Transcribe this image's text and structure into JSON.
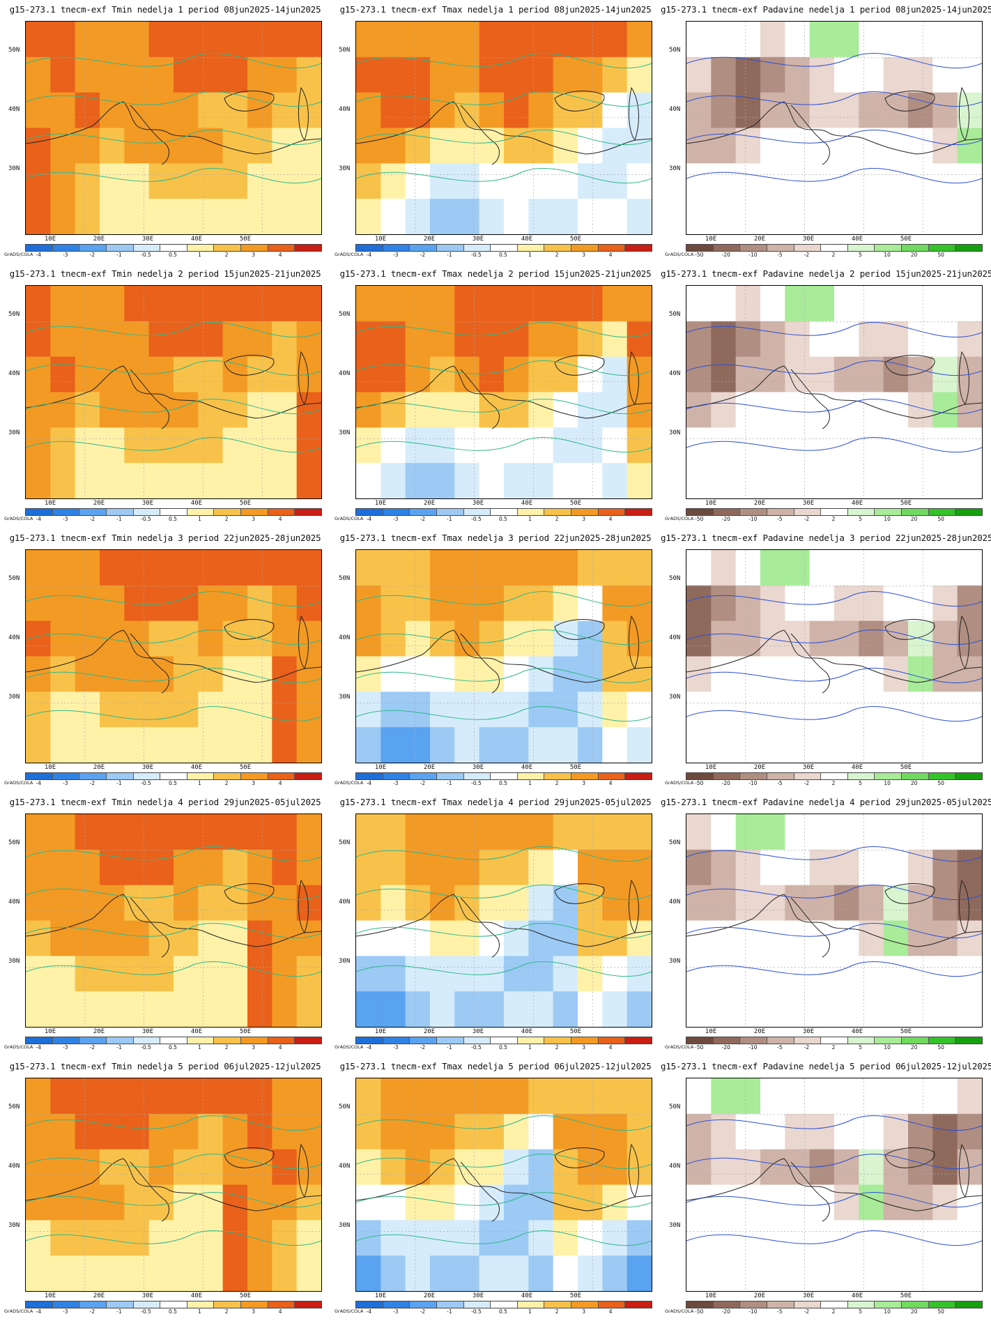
{
  "panels": [
    [
      "g15-273.1 tnecm-exf Tmin nedelja 1 period 08jun2025-14jun2025",
      "g15-273.1 tnecm-exf Tmax nedelja 1 period 08jun2025-14jun2025",
      "g15-273.1 tnecm-exf Padavine nedelja 1 period 08jun2025-14jun2025"
    ],
    [
      "g15-273.1 tnecm-exf Tmin nedelja 2 period 15jun2025-21jun2025",
      "g15-273.1 tnecm-exf Tmax nedelja 2 period 15jun2025-21jun2025",
      "g15-273.1 tnecm-exf Padavine nedelja 2 period 15jun2025-21jun2025"
    ],
    [
      "g15-273.1 tnecm-exf Tmin nedelja 3 period 22jun2025-28jun2025",
      "g15-273.1 tnecm-exf Tmax nedelja 3 period 22jun2025-28jun2025",
      "g15-273.1 tnecm-exf Padavine nedelja 3 period 22jun2025-28jun2025"
    ],
    [
      "g15-273.1 tnecm-exf Tmin nedelja 4 period 29jun2025-05jul2025",
      "g15-273.1 tnecm-exf Tmax nedelja 4 period 29jun2025-05jul2025",
      "g15-273.1 tnecm-exf Padavine nedelja 4 period 29jun2025-05jul2025"
    ],
    [
      "g15-273.1 tnecm-exf Tmin nedelja 5 period 06jul2025-12jul2025",
      "g15-273.1 tnecm-exf Tmax nedelja 5 period 06jul2025-12jul2025",
      "g15-273.1 tnecm-exf Padavine nedelja 5 period 06jul2025-12jul2025"
    ]
  ],
  "lat_labels": [
    "50N",
    "40N",
    "30N"
  ],
  "lon_labels": [
    "10E",
    "20E",
    "30E",
    "40E",
    "50E"
  ],
  "grads_label": "GrADS/COLA",
  "temp_legend": {
    "ticks": [
      "-4",
      "-3",
      "-2",
      "-1",
      "-0.5",
      "0.5",
      "1",
      "2",
      "3",
      "4"
    ],
    "colors": [
      "#1e6fd9",
      "#2f83e6",
      "#5aa3f0",
      "#9ccaf5",
      "#d6ecfb",
      "#ffffff",
      "#fff2a8",
      "#f8c24a",
      "#f39a24",
      "#e9611a",
      "#c81e14"
    ]
  },
  "precip_legend": {
    "ticks": [
      "-50",
      "-20",
      "-10",
      "-5",
      "-2",
      "2",
      "5",
      "10",
      "20",
      "50"
    ],
    "colors": [
      "#6e4a3e",
      "#8f6a5c",
      "#b08e82",
      "#cfb3a8",
      "#ead7cf",
      "#ffffff",
      "#d8f5d0",
      "#a8eb98",
      "#6fdb5e",
      "#35c22a",
      "#16a010"
    ]
  },
  "map_fields": {
    "tmin": [
      [
        4,
        4,
        3,
        3,
        3,
        4,
        4,
        4,
        4,
        4,
        4,
        4
      ],
      [
        3,
        4,
        3,
        3,
        3,
        3,
        4,
        4,
        4,
        3,
        3,
        2
      ],
      [
        3,
        3,
        4,
        3,
        3,
        3,
        3,
        2,
        2,
        3,
        2,
        2
      ],
      [
        4,
        3,
        3,
        2,
        3,
        3,
        3,
        3,
        2,
        2,
        1,
        1
      ],
      [
        4,
        3,
        2,
        1,
        1,
        2,
        2,
        2,
        2,
        1,
        1,
        1
      ],
      [
        4,
        3,
        2,
        1,
        1,
        1,
        1,
        1,
        1,
        1,
        1,
        1
      ]
    ],
    "tmax": [
      [
        3,
        3,
        3,
        3,
        3,
        4,
        4,
        4,
        4,
        4,
        4,
        3
      ],
      [
        4,
        4,
        4,
        3,
        3,
        4,
        4,
        4,
        3,
        3,
        2,
        1
      ],
      [
        3,
        4,
        4,
        3,
        2,
        3,
        4,
        3,
        2,
        2,
        0,
        -1
      ],
      [
        3,
        3,
        2,
        1,
        1,
        1,
        2,
        2,
        1,
        0,
        -1,
        -1
      ],
      [
        2,
        1,
        0,
        -1,
        -1,
        0,
        0,
        0,
        0,
        -1,
        -1,
        0
      ],
      [
        1,
        0,
        -1,
        -2,
        -2,
        -1,
        0,
        -1,
        -1,
        0,
        0,
        -1
      ]
    ],
    "precip": [
      [
        0,
        0,
        0,
        -1,
        0,
        2,
        2,
        0,
        0,
        0,
        0,
        0
      ],
      [
        -1,
        -3,
        -4,
        -3,
        -2,
        -1,
        0,
        0,
        -1,
        -1,
        0,
        0
      ],
      [
        -2,
        -3,
        -4,
        -2,
        -2,
        -1,
        -1,
        -2,
        -2,
        -3,
        -2,
        1
      ],
      [
        -2,
        -2,
        -1,
        0,
        0,
        0,
        0,
        0,
        0,
        0,
        -1,
        2
      ],
      [
        0,
        0,
        0,
        0,
        0,
        0,
        0,
        0,
        0,
        0,
        0,
        0
      ],
      [
        0,
        0,
        0,
        0,
        0,
        0,
        0,
        0,
        0,
        0,
        0,
        0
      ]
    ]
  }
}
